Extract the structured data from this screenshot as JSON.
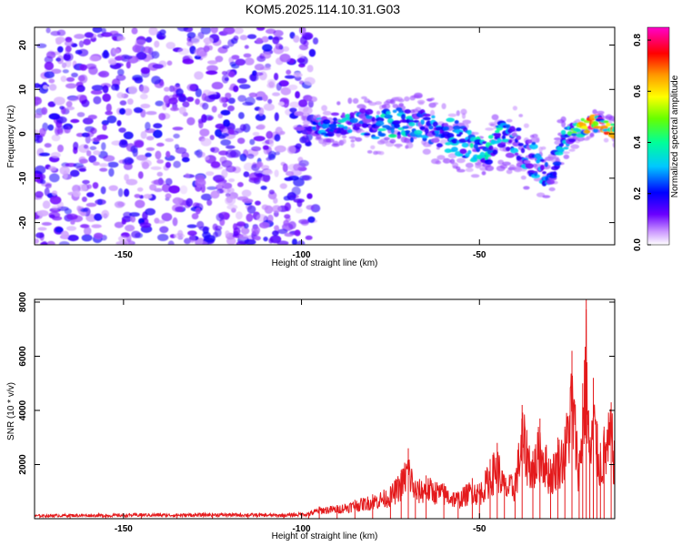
{
  "title": "KOM5.2025.114.10.31.G03",
  "chart_data": [
    {
      "type": "heatmap",
      "xlabel": "Height of straight line (km)",
      "ylabel": "Frequency (Hz)",
      "xlim": [
        -175,
        -12
      ],
      "ylim": [
        -25,
        24
      ],
      "x_ticks": [
        -150,
        -100,
        -50
      ],
      "y_ticks": [
        20,
        10,
        0,
        -10,
        -20
      ],
      "colorbar": {
        "label": "Normalized spectral amplitude",
        "range": [
          0.0,
          0.85
        ],
        "ticks": [
          0.0,
          0.2,
          0.4,
          0.6,
          0.8
        ],
        "colors": [
          "#ffffff",
          "#cc99ff",
          "#6a00ff",
          "#0000ff",
          "#00c8ff",
          "#00ff99",
          "#66ff00",
          "#ffff00",
          "#ff9900",
          "#ff0000",
          "#ff0066",
          "#ff00cc"
        ]
      },
      "noise_region": {
        "x_range": [
          -175,
          -96
        ],
        "f_range": [
          -25,
          24
        ],
        "typical_amplitude": 0.1,
        "peak_amplitude": 0.2
      },
      "signal_ridge": {
        "x": [
          -96,
          -92,
          -88,
          -84,
          -80,
          -76,
          -72,
          -68,
          -64,
          -60,
          -56,
          -52,
          -48,
          -44,
          -40,
          -36,
          -32,
          -30,
          -28,
          -26,
          -24,
          -20,
          -16,
          -12
        ],
        "f_center": [
          1.5,
          2,
          2.5,
          2.5,
          2,
          2,
          2.5,
          2,
          1,
          0,
          -1,
          -3,
          -4,
          -1,
          -2,
          -5,
          -8,
          -11,
          -4,
          -1,
          0,
          2,
          2.5,
          0.5
        ],
        "f_spread": [
          2,
          3,
          3,
          3.5,
          4,
          4,
          4,
          4.5,
          4.5,
          4.5,
          4.5,
          4,
          4,
          4.5,
          5,
          5,
          4,
          3.5,
          4,
          3,
          2.5,
          2,
          2,
          2
        ],
        "amplitude": [
          0.25,
          0.3,
          0.35,
          0.3,
          0.3,
          0.35,
          0.4,
          0.3,
          0.3,
          0.3,
          0.3,
          0.35,
          0.35,
          0.35,
          0.3,
          0.3,
          0.3,
          0.25,
          0.3,
          0.35,
          0.4,
          0.7,
          0.75,
          0.6
        ]
      }
    },
    {
      "type": "line",
      "xlabel": "Height of straight line (km)",
      "ylabel": "SNR (10 * v/v)",
      "xlim": [
        -175,
        -12
      ],
      "ylim": [
        0,
        8100
      ],
      "x_ticks": [
        -150,
        -100,
        -50
      ],
      "y_ticks": [
        2000,
        4000,
        6000,
        8000
      ],
      "line_color": "#e41a1c",
      "series": [
        {
          "x": [
            -175,
            -165,
            -155,
            -145,
            -135,
            -125,
            -115,
            -105,
            -98,
            -95,
            -90,
            -85,
            -80,
            -75,
            -72,
            -70,
            -68,
            -65,
            -60,
            -56,
            -52,
            -50,
            -47,
            -45,
            -43,
            -40,
            -38,
            -35,
            -33,
            -30,
            -28,
            -26,
            -24,
            -22,
            -21,
            -20,
            -19,
            -18,
            -17,
            -16,
            -15,
            -13,
            -12
          ],
          "values": [
            150,
            180,
            170,
            200,
            190,
            210,
            200,
            180,
            250,
            450,
            500,
            700,
            900,
            1200,
            1800,
            2600,
            1400,
            1600,
            1300,
            1000,
            1500,
            1300,
            2200,
            2800,
            1600,
            1700,
            4200,
            2500,
            3700,
            2200,
            3000,
            3400,
            6200,
            2400,
            5000,
            8100,
            2900,
            5200,
            3600,
            2800,
            3400,
            4300,
            3000
          ]
        }
      ]
    }
  ]
}
